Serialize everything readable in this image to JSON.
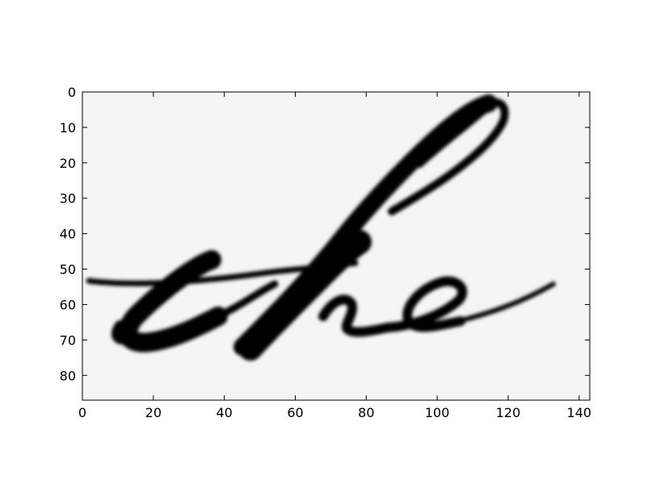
{
  "figure": {
    "content": "handwritten word image",
    "handwritten_word": "the",
    "colormap": "gray",
    "ink_color": "#000000",
    "paper_color": "#f5f5f5"
  },
  "axes": {
    "x_ticks": [
      "0",
      "20",
      "40",
      "60",
      "80",
      "100",
      "120",
      "140"
    ],
    "y_ticks": [
      "0",
      "10",
      "20",
      "30",
      "40",
      "50",
      "60",
      "70",
      "80"
    ],
    "x_range": [
      0,
      143
    ],
    "y_range": [
      0,
      87
    ],
    "y_inverted": true
  }
}
